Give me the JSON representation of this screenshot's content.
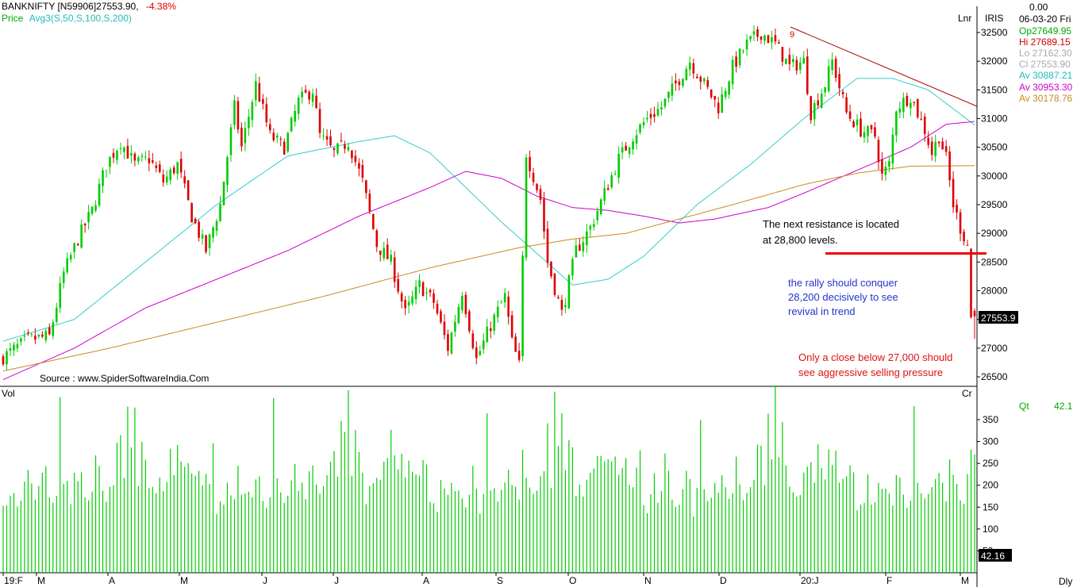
{
  "header": {
    "symbol_line": "BANKNIFTY [N59906]27553.90,",
    "change": "-4.38%",
    "price_label": "Price",
    "avg_label": "Avg3(S,50,S,100,S,200)",
    "scale_mode": "Lnr",
    "vendor": "IRIS",
    "volume_label": "Vol",
    "cr_label": "Cr",
    "period_label": "Dly"
  },
  "info_panel": {
    "top_value": "0.00",
    "date": "06-03-20 Fri",
    "open": "Op27649.95",
    "high": "Hi  27689.15",
    "low": "Lo  27162.30",
    "close": "Cl  27553.90",
    "avg1": "Av 30887.21",
    "avg2": "Av 30953.30",
    "avg3": "Av 30178.76",
    "qt_label": "Qt",
    "qt_value": "42.16"
  },
  "source": "Source : www.SpiderSoftwareIndia.Com",
  "annotations": {
    "resistance": [
      "The next resistance is located",
      "at 28,800 levels."
    ],
    "rally": [
      "the rally should conquer",
      "28,200 decisively to see",
      "revival in trend"
    ],
    "selling": [
      "Only a close below 27,000 should",
      "see aggressive selling pressure"
    ],
    "pattern_marker": "9"
  },
  "colors": {
    "up_candle": "#00cc00",
    "down_candle": "#dd0000",
    "sma50": "#33cccc",
    "sma100": "#cc00cc",
    "sma200": "#cc8822",
    "trendline": "#aa0000",
    "resistance_line": "#ee0000",
    "volume": "#00cc00",
    "rally_text": "#2233cc",
    "selling_text": "#dd1111"
  },
  "chart_data": [
    {
      "type": "candlestick",
      "name": "BANKNIFTY",
      "price_axis": {
        "ticks": [
          32500,
          32000,
          31500,
          31000,
          30500,
          30000,
          29500,
          29000,
          28500,
          28000,
          27500,
          27000,
          26500
        ],
        "range": [
          26350,
          32700
        ]
      },
      "x_labels": [
        "19:F",
        "M",
        "A",
        "M",
        "J",
        "J",
        "A",
        "S",
        "O",
        "N",
        "D",
        "20:J",
        "F",
        "M"
      ],
      "last_price_label": "27553.9",
      "price_path": [
        [
          0,
          26800
        ],
        [
          8,
          27150
        ],
        [
          14,
          27200
        ],
        [
          18,
          28300
        ],
        [
          22,
          28900
        ],
        [
          26,
          29400
        ],
        [
          30,
          30200
        ],
        [
          34,
          30600
        ],
        [
          38,
          30200
        ],
        [
          42,
          30300
        ],
        [
          46,
          29900
        ],
        [
          50,
          30200
        ],
        [
          54,
          29300
        ],
        [
          58,
          28700
        ],
        [
          62,
          29500
        ],
        [
          66,
          31200
        ],
        [
          68,
          30500
        ],
        [
          72,
          31600
        ],
        [
          76,
          30700
        ],
        [
          80,
          30500
        ],
        [
          84,
          31300
        ],
        [
          88,
          31500
        ],
        [
          90,
          30700
        ],
        [
          94,
          30400
        ],
        [
          98,
          30600
        ],
        [
          102,
          29900
        ],
        [
          106,
          28800
        ],
        [
          110,
          28500
        ],
        [
          114,
          27600
        ],
        [
          118,
          28100
        ],
        [
          122,
          27800
        ],
        [
          126,
          27000
        ],
        [
          130,
          28000
        ],
        [
          134,
          26800
        ],
        [
          138,
          27400
        ],
        [
          142,
          27900
        ],
        [
          144,
          27100
        ],
        [
          146,
          26700
        ],
        [
          148,
          30400
        ],
        [
          152,
          29600
        ],
        [
          154,
          28500
        ],
        [
          158,
          27600
        ],
        [
          162,
          28700
        ],
        [
          166,
          29100
        ],
        [
          170,
          29700
        ],
        [
          174,
          30300
        ],
        [
          178,
          30700
        ],
        [
          182,
          31000
        ],
        [
          186,
          31200
        ],
        [
          190,
          31600
        ],
        [
          194,
          32000
        ],
        [
          198,
          31600
        ],
        [
          202,
          31200
        ],
        [
          206,
          31900
        ],
        [
          210,
          32300
        ],
        [
          214,
          32500
        ],
        [
          218,
          32300
        ],
        [
          222,
          31900
        ],
        [
          226,
          32000
        ],
        [
          228,
          31100
        ],
        [
          232,
          31600
        ],
        [
          234,
          32000
        ],
        [
          238,
          31100
        ],
        [
          242,
          30800
        ],
        [
          246,
          30700
        ],
        [
          248,
          30000
        ],
        [
          250,
          30200
        ],
        [
          252,
          31200
        ],
        [
          256,
          31400
        ],
        [
          260,
          30800
        ],
        [
          262,
          30400
        ],
        [
          264,
          30700
        ],
        [
          266,
          30300
        ],
        [
          268,
          29500
        ],
        [
          270,
          29100
        ],
        [
          272,
          28800
        ],
        [
          273,
          27550
        ]
      ],
      "moving_averages": [
        {
          "label": "S,50",
          "points": [
            [
              0,
              27120
            ],
            [
              20,
              27500
            ],
            [
              40,
              28500
            ],
            [
              60,
              29500
            ],
            [
              80,
              30350
            ],
            [
              100,
              30600
            ],
            [
              110,
              30700
            ],
            [
              120,
              30400
            ],
            [
              140,
              29200
            ],
            [
              160,
              28100
            ],
            [
              170,
              28200
            ],
            [
              180,
              28600
            ],
            [
              195,
              29500
            ],
            [
              210,
              30200
            ],
            [
              225,
              31000
            ],
            [
              240,
              31700
            ],
            [
              250,
              31700
            ],
            [
              260,
              31500
            ],
            [
              273,
              30890
            ]
          ]
        },
        {
          "label": "S,100",
          "points": [
            [
              0,
              26450
            ],
            [
              20,
              27000
            ],
            [
              40,
              27700
            ],
            [
              60,
              28200
            ],
            [
              80,
              28700
            ],
            [
              100,
              29300
            ],
            [
              120,
              29800
            ],
            [
              130,
              30080
            ],
            [
              140,
              29960
            ],
            [
              150,
              29650
            ],
            [
              160,
              29450
            ],
            [
              170,
              29400
            ],
            [
              180,
              29300
            ],
            [
              190,
              29180
            ],
            [
              200,
              29250
            ],
            [
              215,
              29450
            ],
            [
              225,
              29700
            ],
            [
              240,
              30100
            ],
            [
              255,
              30500
            ],
            [
              265,
              30900
            ],
            [
              273,
              30950
            ]
          ]
        },
        {
          "label": "S,200",
          "points": [
            [
              0,
              26600
            ],
            [
              30,
              27000
            ],
            [
              60,
              27450
            ],
            [
              90,
              27900
            ],
            [
              120,
              28400
            ],
            [
              145,
              28750
            ],
            [
              160,
              28900
            ],
            [
              175,
              29000
            ],
            [
              190,
              29250
            ],
            [
              205,
              29500
            ],
            [
              225,
              29850
            ],
            [
              240,
              30050
            ],
            [
              255,
              30170
            ],
            [
              273,
              30180
            ]
          ]
        }
      ],
      "trendline": [
        [
          0,
          32600
        ],
        [
          273,
          31130
        ]
      ],
      "resistance_level": 28650
    },
    {
      "type": "bar",
      "name": "Vol",
      "axis_ticks": [
        350,
        300,
        250,
        200,
        150,
        100,
        50
      ],
      "range": [
        0,
        400
      ],
      "last_value_label": "42.16",
      "sample_values": [
        150,
        145,
        160,
        200,
        175,
        170,
        240,
        210,
        185,
        165,
        175,
        200,
        220,
        190,
        150,
        175,
        350,
        220,
        190,
        175,
        200,
        215,
        230,
        200,
        180,
        185,
        250,
        220,
        195,
        160,
        180,
        200,
        260,
        300,
        220,
        380,
        300,
        400,
        230,
        300,
        270,
        200,
        180,
        180,
        195,
        210,
        225,
        260,
        240,
        285,
        260,
        230,
        250,
        240,
        250,
        240,
        200,
        210,
        230,
        270
      ]
    }
  ]
}
